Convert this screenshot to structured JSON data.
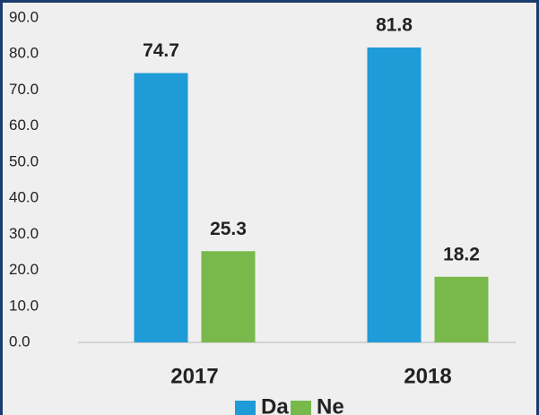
{
  "chart_data": {
    "type": "bar",
    "categories": [
      "2017",
      "2018"
    ],
    "series": [
      {
        "name": "Da",
        "color": "#1f9bd7",
        "values": [
          74.7,
          81.8
        ]
      },
      {
        "name": "Ne",
        "color": "#79b94c",
        "values": [
          25.3,
          18.2
        ]
      }
    ],
    "ylim": [
      0,
      90
    ],
    "yticks": [
      {
        "value": 0,
        "label": "0.0"
      },
      {
        "value": 10,
        "label": "10.0"
      },
      {
        "value": 20,
        "label": "20.0"
      },
      {
        "value": 30,
        "label": "30.0"
      },
      {
        "value": 40,
        "label": "40.0"
      },
      {
        "value": 50,
        "label": "50.0"
      },
      {
        "value": 60,
        "label": "60.0"
      },
      {
        "value": 70,
        "label": "70.0"
      },
      {
        "value": 80,
        "label": "80.0"
      },
      {
        "value": 90,
        "label": "90.0"
      }
    ],
    "grid": false,
    "legend": "bottom"
  }
}
